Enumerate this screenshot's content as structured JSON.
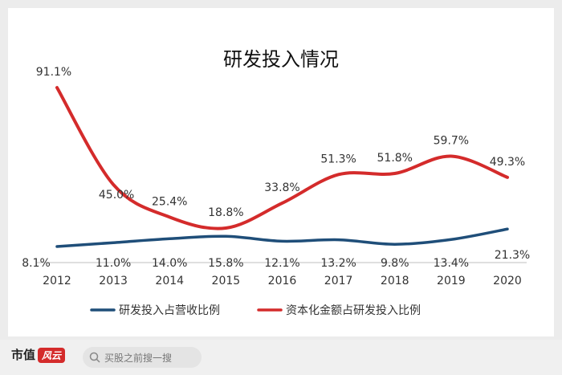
{
  "chart_data": {
    "type": "line",
    "title": "研发投入情况",
    "categories": [
      "2012",
      "2013",
      "2014",
      "2015",
      "2016",
      "2017",
      "2018",
      "2019",
      "2020"
    ],
    "series": [
      {
        "name": "研发投入占营收比例",
        "color": "#1f4e79",
        "values": [
          8.1,
          11.0,
          14.0,
          15.8,
          12.1,
          13.2,
          9.8,
          13.4,
          21.3
        ],
        "labels": [
          "8.1%",
          "11.0%",
          "14.0%",
          "15.8%",
          "12.1%",
          "13.2%",
          "9.8%",
          "13.4%",
          "21.3%"
        ]
      },
      {
        "name": "资本化金额占研发投入比例",
        "color": "#d42b2b",
        "values": [
          91.1,
          45.0,
          25.4,
          18.8,
          33.8,
          51.3,
          51.8,
          59.7,
          49.3
        ],
        "labels": [
          "91.1%",
          "45.0%",
          "25.4%",
          "18.8%",
          "33.8%",
          "51.3%",
          "51.8%",
          "59.7%",
          "49.3%"
        ]
      }
    ],
    "grid": false,
    "legend": "bottom"
  },
  "footer": {
    "brand": "市值",
    "brand_logo": "风云",
    "search_placeholder": "买股之前搜一搜",
    "search_icon": "search-icon"
  }
}
